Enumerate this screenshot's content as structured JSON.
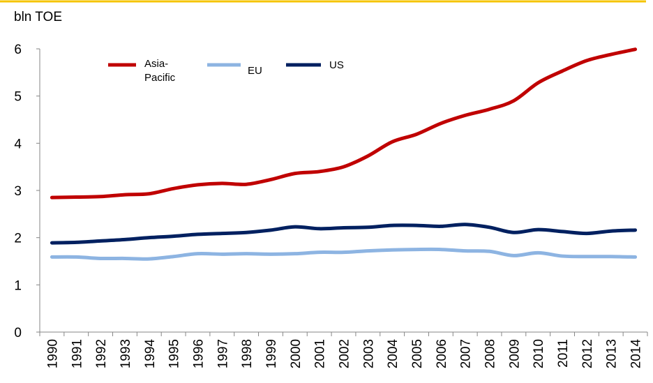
{
  "chart_data": {
    "type": "line",
    "ylabel": "bln TOE",
    "categories": [
      "1990",
      "1991",
      "1992",
      "1993",
      "1994",
      "1995",
      "1996",
      "1997",
      "1998",
      "1999",
      "2000",
      "2001",
      "2002",
      "2003",
      "2004",
      "2005",
      "2006",
      "2007",
      "2008",
      "2009",
      "2010",
      "2011",
      "2012",
      "2013",
      "2014"
    ],
    "series": [
      {
        "name": "Asia-Pacific",
        "color": "#c00000",
        "values": [
          2.85,
          2.86,
          2.87,
          2.91,
          2.93,
          3.04,
          3.12,
          3.15,
          3.13,
          3.23,
          3.36,
          3.4,
          3.5,
          3.73,
          4.03,
          4.19,
          4.42,
          4.59,
          4.72,
          4.9,
          5.28,
          5.53,
          5.75,
          5.88,
          5.99
        ]
      },
      {
        "name": "EU",
        "color": "#8db4e2",
        "values": [
          1.59,
          1.59,
          1.56,
          1.56,
          1.55,
          1.6,
          1.66,
          1.65,
          1.66,
          1.65,
          1.66,
          1.69,
          1.69,
          1.72,
          1.74,
          1.75,
          1.75,
          1.72,
          1.71,
          1.62,
          1.68,
          1.61,
          1.6,
          1.6,
          1.59
        ]
      },
      {
        "name": "US",
        "color": "#002060",
        "values": [
          1.89,
          1.9,
          1.93,
          1.96,
          2.0,
          2.03,
          2.07,
          2.09,
          2.11,
          2.16,
          2.23,
          2.19,
          2.21,
          2.22,
          2.26,
          2.26,
          2.24,
          2.28,
          2.22,
          2.11,
          2.17,
          2.13,
          2.09,
          2.14,
          2.16
        ]
      }
    ],
    "ylim": [
      0,
      6
    ],
    "yticks": [
      0,
      1,
      2,
      3,
      4,
      5,
      6
    ],
    "grid": false
  }
}
